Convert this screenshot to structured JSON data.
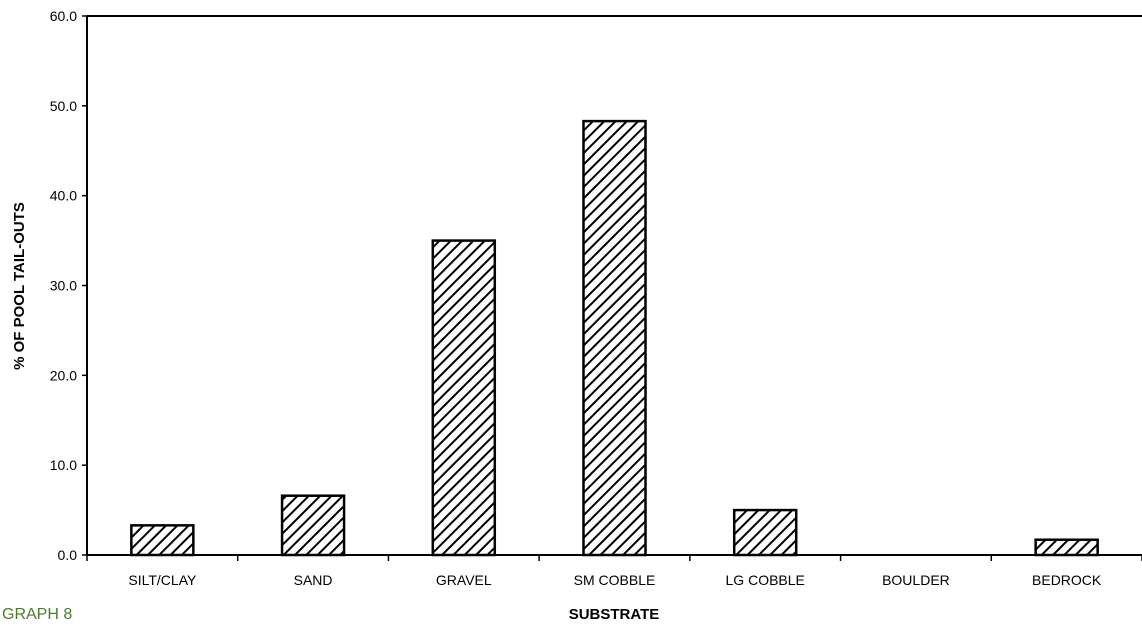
{
  "chart_data": {
    "type": "bar",
    "categories": [
      "SILT/CLAY",
      "SAND",
      "GRAVEL",
      "SM COBBLE",
      "LG COBBLE",
      "BOULDER",
      "BEDROCK"
    ],
    "values": [
      3.3,
      6.6,
      35.0,
      48.3,
      5.0,
      0.0,
      1.7
    ],
    "yticks": [
      "0.0",
      "10.0",
      "20.0",
      "30.0",
      "40.0",
      "50.0",
      "60.0"
    ],
    "ylim": [
      0,
      60
    ],
    "xlabel": "SUBSTRATE",
    "ylabel": "% OF POOL TAIL-OUTS",
    "bar_fill": "diagonal-hatch",
    "bar_color": "#000000",
    "grid": false
  },
  "caption": "GRAPH 8"
}
